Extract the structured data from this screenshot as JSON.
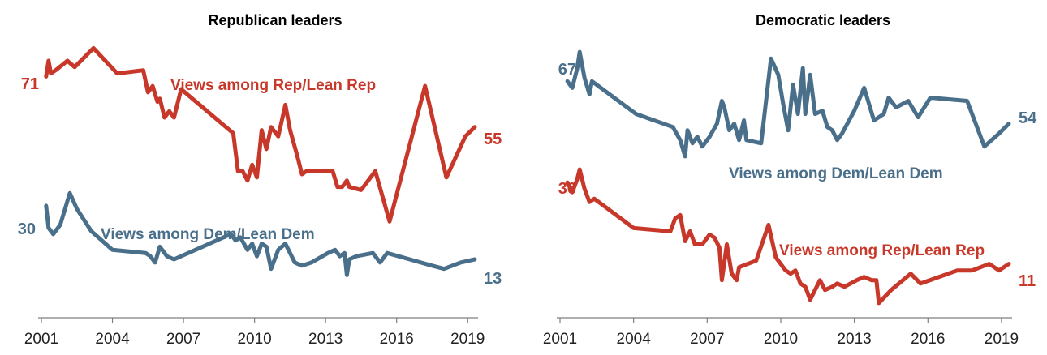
{
  "colors": {
    "rep": "#c8382a",
    "dem": "#4a6f8a"
  },
  "chart_data": [
    {
      "type": "line",
      "title": "Republican leaders",
      "xlabel": "",
      "ylabel": "",
      "x_ticks": [
        2001,
        2004,
        2007,
        2010,
        2013,
        2016,
        2019
      ],
      "xlim": [
        2001,
        2019.3
      ],
      "ylim": [
        0,
        100
      ],
      "series": [
        {
          "name": "Views among Rep/Lean Rep",
          "color_key": "rep",
          "start_label": "71",
          "end_label": "55",
          "points": [
            [
              2001.2,
              71
            ],
            [
              2001.3,
              76
            ],
            [
              2001.4,
              72
            ],
            [
              2001.6,
              73
            ],
            [
              2002.1,
              76
            ],
            [
              2002.4,
              74
            ],
            [
              2003.2,
              80
            ],
            [
              2004.2,
              72
            ],
            [
              2005.3,
              73
            ],
            [
              2005.5,
              66
            ],
            [
              2005.7,
              68
            ],
            [
              2005.9,
              63
            ],
            [
              2006.0,
              64
            ],
            [
              2006.2,
              58
            ],
            [
              2006.4,
              60
            ],
            [
              2006.6,
              58
            ],
            [
              2006.9,
              67
            ],
            [
              2009.1,
              53
            ],
            [
              2009.3,
              41
            ],
            [
              2009.5,
              41
            ],
            [
              2009.7,
              38
            ],
            [
              2009.9,
              43
            ],
            [
              2010.1,
              39
            ],
            [
              2010.3,
              54
            ],
            [
              2010.5,
              48
            ],
            [
              2010.7,
              55
            ],
            [
              2011.0,
              52
            ],
            [
              2011.3,
              62
            ],
            [
              2011.5,
              54
            ],
            [
              2011.8,
              46
            ],
            [
              2012.0,
              40
            ],
            [
              2012.2,
              41
            ],
            [
              2013.3,
              41
            ],
            [
              2013.5,
              36
            ],
            [
              2013.7,
              36
            ],
            [
              2013.9,
              38
            ],
            [
              2014.0,
              36
            ],
            [
              2014.5,
              35
            ],
            [
              2015.1,
              41
            ],
            [
              2015.7,
              25
            ],
            [
              2017.2,
              68
            ],
            [
              2018.1,
              39
            ],
            [
              2018.9,
              52
            ],
            [
              2019.3,
              55
            ]
          ]
        },
        {
          "name": "Views among Dem/Lean Dem",
          "color_key": "dem",
          "start_label": "30",
          "end_label": "13",
          "points": [
            [
              2001.2,
              30
            ],
            [
              2001.3,
              23
            ],
            [
              2001.5,
              21
            ],
            [
              2001.8,
              24
            ],
            [
              2002.2,
              34
            ],
            [
              2002.5,
              29
            ],
            [
              2003.1,
              22
            ],
            [
              2004.0,
              16
            ],
            [
              2005.4,
              15
            ],
            [
              2005.6,
              14
            ],
            [
              2005.8,
              12
            ],
            [
              2006.0,
              17
            ],
            [
              2006.3,
              14
            ],
            [
              2006.6,
              13
            ],
            [
              2009.0,
              21
            ],
            [
              2009.2,
              19
            ],
            [
              2009.4,
              20
            ],
            [
              2009.7,
              16
            ],
            [
              2009.9,
              18
            ],
            [
              2010.1,
              14
            ],
            [
              2010.3,
              18
            ],
            [
              2010.5,
              17
            ],
            [
              2010.7,
              10
            ],
            [
              2011.0,
              16
            ],
            [
              2011.3,
              18
            ],
            [
              2011.7,
              12
            ],
            [
              2012.0,
              11
            ],
            [
              2012.4,
              12
            ],
            [
              2013.1,
              15
            ],
            [
              2013.4,
              16
            ],
            [
              2013.6,
              14
            ],
            [
              2013.8,
              15
            ],
            [
              2013.9,
              8
            ],
            [
              2014.0,
              13
            ],
            [
              2014.3,
              14
            ],
            [
              2015.0,
              15
            ],
            [
              2015.3,
              12
            ],
            [
              2015.6,
              15
            ],
            [
              2017.5,
              11
            ],
            [
              2018.0,
              10
            ],
            [
              2018.7,
              12
            ],
            [
              2019.3,
              13
            ]
          ]
        }
      ]
    },
    {
      "type": "line",
      "title": "Democratic leaders",
      "xlabel": "",
      "ylabel": "",
      "x_ticks": [
        2001,
        2004,
        2007,
        2010,
        2013,
        2016,
        2019
      ],
      "xlim": [
        2001,
        2019.3
      ],
      "ylim": [
        0,
        100
      ],
      "series": [
        {
          "name": "Views among Dem/Lean Dem",
          "color_key": "dem",
          "start_label": "67",
          "end_label": "54",
          "points": [
            [
              2001.3,
              67
            ],
            [
              2001.5,
              65
            ],
            [
              2001.7,
              71
            ],
            [
              2001.8,
              76
            ],
            [
              2002.0,
              68
            ],
            [
              2002.2,
              63
            ],
            [
              2002.3,
              67
            ],
            [
              2004.1,
              57
            ],
            [
              2005.6,
              53
            ],
            [
              2005.9,
              49
            ],
            [
              2006.1,
              44
            ],
            [
              2006.2,
              52
            ],
            [
              2006.4,
              48
            ],
            [
              2006.6,
              50
            ],
            [
              2006.8,
              47
            ],
            [
              2007.1,
              50
            ],
            [
              2007.4,
              54
            ],
            [
              2007.6,
              61
            ],
            [
              2007.7,
              59
            ],
            [
              2007.9,
              52
            ],
            [
              2008.1,
              54
            ],
            [
              2008.3,
              49
            ],
            [
              2008.5,
              55
            ],
            [
              2008.6,
              49
            ],
            [
              2009.2,
              48
            ],
            [
              2009.6,
              74
            ],
            [
              2009.9,
              69
            ],
            [
              2010.1,
              60
            ],
            [
              2010.3,
              52
            ],
            [
              2010.5,
              66
            ],
            [
              2010.7,
              57
            ],
            [
              2010.9,
              71
            ],
            [
              2011.0,
              57
            ],
            [
              2011.2,
              69
            ],
            [
              2011.4,
              57
            ],
            [
              2011.7,
              58
            ],
            [
              2011.9,
              53
            ],
            [
              2012.1,
              52
            ],
            [
              2012.3,
              49
            ],
            [
              2012.5,
              51
            ],
            [
              2013.0,
              58
            ],
            [
              2013.4,
              65
            ],
            [
              2013.8,
              55
            ],
            [
              2014.2,
              57
            ],
            [
              2014.4,
              62
            ],
            [
              2014.7,
              59
            ],
            [
              2015.2,
              61
            ],
            [
              2015.6,
              56
            ],
            [
              2016.1,
              62
            ],
            [
              2017.6,
              61
            ],
            [
              2018.3,
              47
            ],
            [
              2018.9,
              51
            ],
            [
              2019.3,
              54
            ]
          ]
        },
        {
          "name": "Views among Rep/Lean Rep",
          "color_key": "rep",
          "start_label": "36",
          "end_label": "11",
          "points": [
            [
              2001.3,
              36
            ],
            [
              2001.5,
              33
            ],
            [
              2001.7,
              37
            ],
            [
              2001.8,
              40
            ],
            [
              2002.0,
              34
            ],
            [
              2002.2,
              30
            ],
            [
              2002.4,
              31
            ],
            [
              2004.0,
              22
            ],
            [
              2005.5,
              21
            ],
            [
              2005.7,
              25
            ],
            [
              2005.9,
              26
            ],
            [
              2006.1,
              18
            ],
            [
              2006.3,
              21
            ],
            [
              2006.5,
              17
            ],
            [
              2006.8,
              17
            ],
            [
              2007.1,
              20
            ],
            [
              2007.3,
              19
            ],
            [
              2007.5,
              16
            ],
            [
              2007.6,
              6
            ],
            [
              2007.8,
              17
            ],
            [
              2008.0,
              8
            ],
            [
              2008.2,
              6
            ],
            [
              2008.3,
              10
            ],
            [
              2009.0,
              12
            ],
            [
              2009.5,
              23
            ],
            [
              2009.8,
              13
            ],
            [
              2010.2,
              9
            ],
            [
              2010.4,
              8
            ],
            [
              2010.6,
              9
            ],
            [
              2010.8,
              5
            ],
            [
              2011.0,
              4
            ],
            [
              2011.2,
              0
            ],
            [
              2011.6,
              6
            ],
            [
              2011.8,
              3
            ],
            [
              2012.1,
              4
            ],
            [
              2012.3,
              5
            ],
            [
              2012.6,
              4
            ],
            [
              2013.1,
              6
            ],
            [
              2013.4,
              7
            ],
            [
              2013.7,
              6
            ],
            [
              2013.9,
              6
            ],
            [
              2014.0,
              -1
            ],
            [
              2014.5,
              3
            ],
            [
              2015.3,
              8
            ],
            [
              2015.7,
              5
            ],
            [
              2017.2,
              9
            ],
            [
              2017.8,
              9
            ],
            [
              2018.5,
              11
            ],
            [
              2018.9,
              9
            ],
            [
              2019.3,
              11
            ]
          ]
        }
      ]
    }
  ]
}
